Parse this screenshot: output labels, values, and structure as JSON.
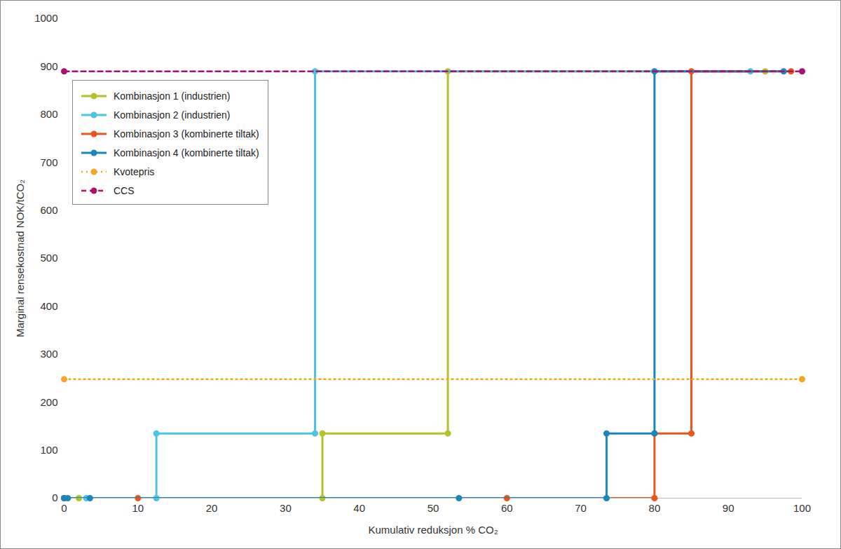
{
  "chart_data": {
    "type": "line",
    "x_label": "Kumulativ reduksjon % CO₂",
    "y_label": "Marginal rensekostnad NOK/tCO₂",
    "xlim": [
      0,
      100
    ],
    "xticks": [
      0,
      10,
      20,
      30,
      40,
      50,
      60,
      70,
      80,
      90,
      100
    ],
    "ylim": [
      0,
      1000
    ],
    "yticks": [
      0,
      100,
      200,
      300,
      400,
      500,
      600,
      700,
      800,
      900,
      1000
    ],
    "grid": false,
    "legend": "upper left",
    "series": [
      {
        "name": "Kombinasjon 1 (industrien)",
        "color": "#b3c22b",
        "marker": "circle",
        "line_style": "solid",
        "x": [
          0,
          2,
          35,
          35,
          52,
          52,
          95
        ],
        "values": [
          0,
          0,
          0,
          135,
          135,
          890,
          890
        ]
      },
      {
        "name": "Kombinasjon 2 (industrien)",
        "color": "#4ec3e6",
        "marker": "circle",
        "line_style": "solid",
        "x": [
          0,
          3,
          12.5,
          12.5,
          34,
          34,
          93
        ],
        "values": [
          0,
          0,
          0,
          135,
          135,
          890,
          890
        ]
      },
      {
        "name": "Kombinasjon 3 (kombinerte tiltak)",
        "color": "#e9561d",
        "marker": "circle",
        "line_style": "solid",
        "x": [
          0,
          10,
          60,
          80,
          80,
          85,
          85,
          98.5
        ],
        "values": [
          0,
          0,
          0,
          0,
          135,
          135,
          890,
          890
        ]
      },
      {
        "name": "Kombinasjon 4 (kombinerte tiltak)",
        "color": "#1b86b9",
        "marker": "circle",
        "line_style": "solid",
        "x": [
          0,
          0.5,
          3.5,
          53.5,
          73.5,
          73.5,
          80,
          80,
          97.5
        ],
        "values": [
          0,
          0,
          0,
          0,
          0,
          135,
          135,
          890,
          890
        ]
      },
      {
        "name": "Kvotepris",
        "color": "#f5a524",
        "marker": "circle",
        "line_style": "dotted",
        "x": [
          0,
          100
        ],
        "values": [
          248,
          248
        ]
      },
      {
        "name": "CCS",
        "color": "#a8116f",
        "marker": "circle",
        "line_style": "dashed",
        "x": [
          0,
          100
        ],
        "values": [
          890,
          890
        ]
      }
    ]
  }
}
